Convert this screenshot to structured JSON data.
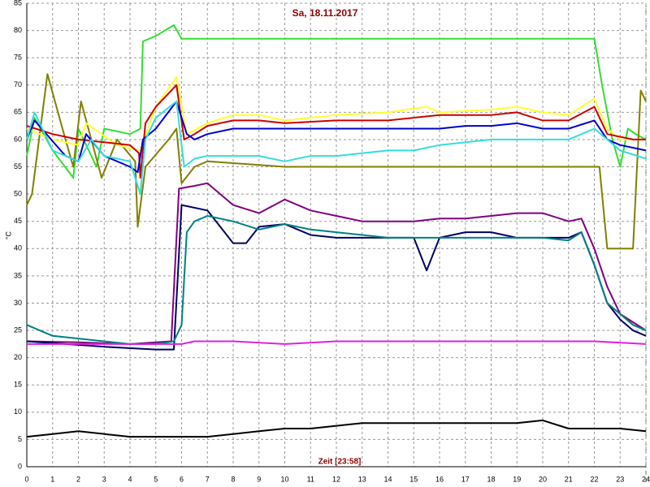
{
  "chart_data": {
    "type": "line",
    "title": "Sa, 18.11.2017",
    "x_label": "Zeit [23:58]",
    "y_label": "°C",
    "xlim": [
      0,
      24
    ],
    "ylim": [
      0,
      85
    ],
    "xticks": [
      0,
      1,
      2,
      3,
      4,
      5,
      6,
      7,
      8,
      9,
      10,
      11,
      12,
      13,
      14,
      15,
      16,
      17,
      18,
      19,
      20,
      21,
      22,
      23,
      24
    ],
    "yticks": [
      0,
      5,
      10,
      15,
      20,
      25,
      30,
      35,
      40,
      45,
      50,
      55,
      60,
      65,
      70,
      75,
      80,
      85
    ],
    "grid": true,
    "series": [
      {
        "color": "#33dd33",
        "x": [
          0,
          0.3,
          1,
          1.8,
          2,
          2.7,
          3,
          4,
          4.4,
          4.5,
          5,
          5.7,
          6,
          8,
          10,
          12,
          14,
          16,
          18,
          20,
          22,
          22.3,
          22.7,
          23,
          23.3,
          23.6,
          24
        ],
        "values": [
          57,
          64,
          58,
          53,
          62,
          55,
          62,
          61,
          62,
          78,
          79,
          81,
          78.5,
          78.5,
          78.5,
          78.5,
          78.5,
          78.5,
          78.5,
          78.5,
          78.5,
          70,
          60,
          55,
          62,
          61,
          60
        ]
      },
      {
        "color": "#808000",
        "x": [
          0,
          0.2,
          0.8,
          1.5,
          1.8,
          2.1,
          2.9,
          3.5,
          4.2,
          4.3,
          4.6,
          5.5,
          5.8,
          6,
          6.5,
          7,
          10,
          14,
          18,
          22,
          22.2,
          22.5,
          23,
          23.5,
          23.8,
          24
        ],
        "values": [
          48,
          50,
          72,
          60,
          55,
          67,
          53,
          60,
          56,
          44,
          55,
          60,
          62,
          52,
          55,
          56,
          55,
          55,
          55,
          55,
          55,
          40,
          40,
          40,
          69,
          67
        ]
      },
      {
        "color": "#ffff33",
        "x": [
          0,
          1,
          2,
          2.3,
          3.5,
          4.4,
          5,
          5.8,
          6.2,
          7,
          8,
          9,
          10,
          12,
          14,
          15.5,
          16,
          18,
          19,
          20,
          21,
          22,
          22.5,
          23,
          24
        ],
        "values": [
          62,
          60,
          59,
          63,
          59,
          58,
          66,
          71.5,
          61,
          63,
          64.5,
          64.5,
          63.5,
          64.5,
          65,
          66,
          65,
          65.5,
          66,
          65,
          64.5,
          67.5,
          62,
          60,
          60
        ]
      },
      {
        "color": "#cc0000",
        "x": [
          0,
          1,
          2,
          3,
          4,
          4.35,
          4.4,
          4.6,
          5,
          5.8,
          6.1,
          6.5,
          7,
          8,
          9,
          10,
          12,
          14,
          16,
          18,
          19,
          20,
          21,
          22,
          22.5,
          23.5,
          24
        ],
        "values": [
          62.5,
          61,
          60,
          59.5,
          59,
          57.5,
          53,
          63,
          66,
          70,
          60,
          61,
          62.5,
          63.5,
          63.5,
          63,
          63.5,
          63.5,
          64.5,
          64.5,
          65,
          63.5,
          63.5,
          66,
          61,
          60,
          60
        ]
      },
      {
        "color": "#0000cc",
        "x": [
          0,
          0.3,
          1.5,
          2,
          2.3,
          3,
          4,
          4.3,
          4.5,
          5,
          5.8,
          6.2,
          6.5,
          7,
          8,
          10,
          12,
          14,
          16,
          17,
          18,
          19,
          20,
          21,
          22,
          22.5,
          23,
          24
        ],
        "values": [
          60,
          63.5,
          57,
          56,
          61,
          57,
          55,
          54,
          60,
          62,
          67,
          61,
          60,
          61,
          62,
          62,
          62,
          62,
          62,
          62.5,
          62.5,
          63,
          62,
          62,
          63.5,
          60,
          59,
          58
        ]
      },
      {
        "color": "#33dddd",
        "x": [
          0,
          0.3,
          1,
          2,
          2.5,
          3,
          4,
          4.4,
          4.6,
          5,
          5.8,
          6.1,
          6.5,
          7,
          9,
          10,
          11,
          12,
          14,
          15,
          16,
          18,
          20,
          21,
          22,
          22.5,
          23,
          24
        ],
        "values": [
          60,
          65,
          58,
          56,
          60,
          57,
          56,
          50,
          60,
          64,
          67,
          55,
          56.5,
          57,
          57,
          56,
          57,
          57,
          58,
          58,
          59,
          60,
          60,
          60,
          62,
          60,
          58,
          56.5
        ]
      },
      {
        "color": "#800080",
        "x": [
          0,
          2,
          4,
          5.6,
          5.9,
          6.5,
          7,
          8,
          9,
          10,
          11,
          12,
          13,
          15,
          16,
          17,
          18,
          19,
          20,
          21,
          21.5,
          22,
          22.5,
          23,
          24
        ],
        "values": [
          23,
          22.8,
          22.5,
          23,
          51,
          51.5,
          52,
          48,
          46.5,
          49,
          47,
          46,
          45,
          45,
          45.5,
          45.5,
          46,
          46.5,
          46.5,
          45,
          45.5,
          40,
          33,
          28,
          25
        ]
      },
      {
        "color": "#000066",
        "x": [
          0,
          3,
          5,
          5.7,
          6,
          7,
          8,
          8.5,
          9,
          10,
          11,
          12,
          15,
          15.5,
          16,
          17,
          18,
          19,
          21,
          21.5,
          22,
          22.5,
          23,
          23.5,
          24
        ],
        "values": [
          23,
          22,
          21.5,
          21.5,
          48,
          47,
          41,
          41,
          44,
          44.5,
          42.5,
          42,
          42,
          36,
          42,
          43,
          43,
          42,
          42,
          43,
          37,
          30,
          27,
          25,
          24
        ]
      },
      {
        "color": "#008080",
        "x": [
          0,
          1,
          2,
          3,
          4,
          5,
          5.7,
          6,
          6.2,
          6.5,
          7,
          8,
          9,
          10,
          11,
          12,
          13,
          14,
          20,
          21,
          21.5,
          22,
          22.5,
          23,
          23.5,
          24
        ],
        "values": [
          26,
          24,
          23.5,
          23,
          22.5,
          22.5,
          23,
          26,
          43,
          45,
          46,
          45,
          43.5,
          44.5,
          43.5,
          43,
          42.5,
          42,
          42,
          41.5,
          43,
          37,
          30,
          28,
          26,
          25
        ]
      },
      {
        "color": "#dd22dd",
        "x": [
          0,
          6,
          6.5,
          8,
          10,
          12,
          16,
          20,
          22,
          24
        ],
        "values": [
          22.5,
          22.5,
          23,
          23,
          22.5,
          23,
          23,
          23,
          23,
          22.5
        ]
      },
      {
        "color": "#000000",
        "x": [
          0,
          1,
          2,
          3,
          4,
          5,
          6,
          7,
          8,
          9,
          10,
          11,
          12,
          13,
          14,
          15,
          16,
          17,
          18,
          19,
          20,
          21,
          22,
          23,
          24
        ],
        "values": [
          5.5,
          6,
          6.5,
          6,
          5.5,
          5.5,
          5.5,
          5.5,
          6,
          6.5,
          7,
          7,
          7.5,
          8,
          8,
          8,
          8,
          8,
          8,
          8,
          8.5,
          7,
          7,
          7,
          6.5
        ]
      }
    ]
  }
}
